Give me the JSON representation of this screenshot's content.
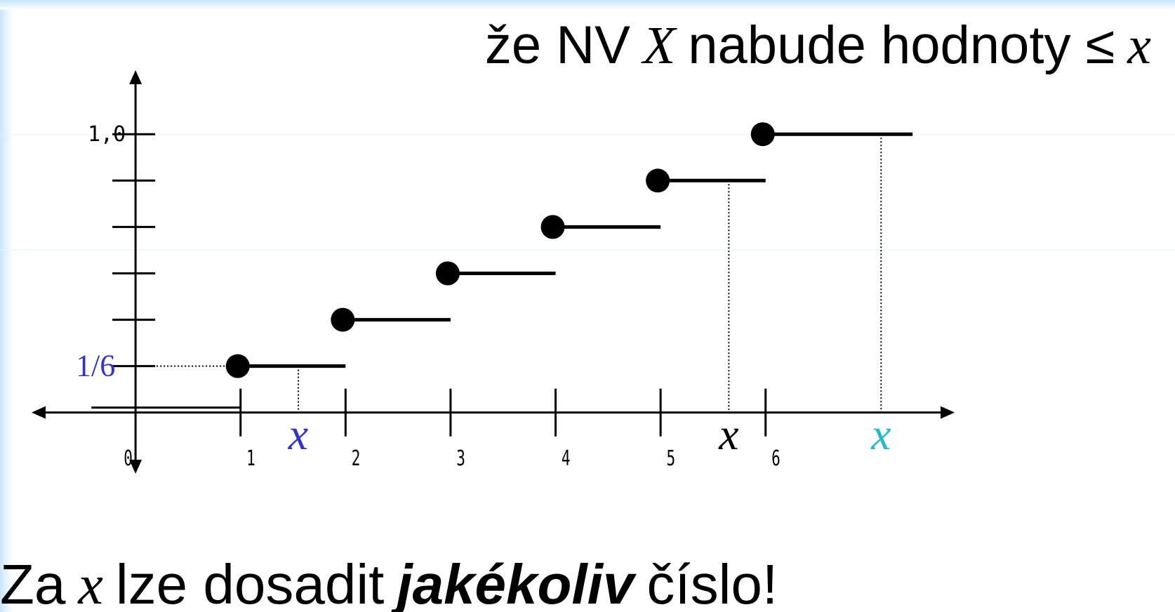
{
  "chart_data": {
    "type": "step",
    "title": [
      {
        "text": "že NV",
        "style": "normal"
      },
      {
        "text": "X",
        "style": "italic"
      },
      {
        "text": "nabude hodnoty ≤",
        "style": "normal"
      },
      {
        "text": "x",
        "style": "italic"
      }
    ],
    "footer": [
      {
        "text": "Za",
        "style": "normal"
      },
      {
        "text": "x",
        "style": "italic"
      },
      {
        "text": "lze dosadit",
        "style": "normal"
      },
      {
        "text": "jakékoliv",
        "style": "bold-italic"
      },
      {
        "text": "číslo!",
        "style": "normal"
      }
    ],
    "x": [
      1,
      2,
      3,
      4,
      5,
      6
    ],
    "values": [
      0.1667,
      0.3333,
      0.5,
      0.6667,
      0.8333,
      1.0
    ],
    "zero_start": -0.42,
    "step_end": 7.4,
    "color": "#000000",
    "xlim": [
      -0.99,
      7.8
    ],
    "ylim": [
      -0.22,
      1.23
    ],
    "xticks": [
      0,
      1,
      2,
      3,
      4,
      5,
      6
    ],
    "yticks": [
      {
        "value": 0.1667,
        "label": "1/6"
      },
      {
        "value": 1.0,
        "label": "1,0"
      }
    ],
    "yminorticks": [
      0.3333,
      0.5,
      0.6667,
      0.8333
    ],
    "annotations": [
      {
        "text": "x",
        "x": 1.55,
        "y": 0.1667,
        "color": "#3333cc"
      },
      {
        "text": "x",
        "x": 5.65,
        "y": 0.8333,
        "color": "#000000"
      },
      {
        "text": "x",
        "x": 7.1,
        "y": 1.0,
        "color": "#22bbcc"
      }
    ]
  }
}
